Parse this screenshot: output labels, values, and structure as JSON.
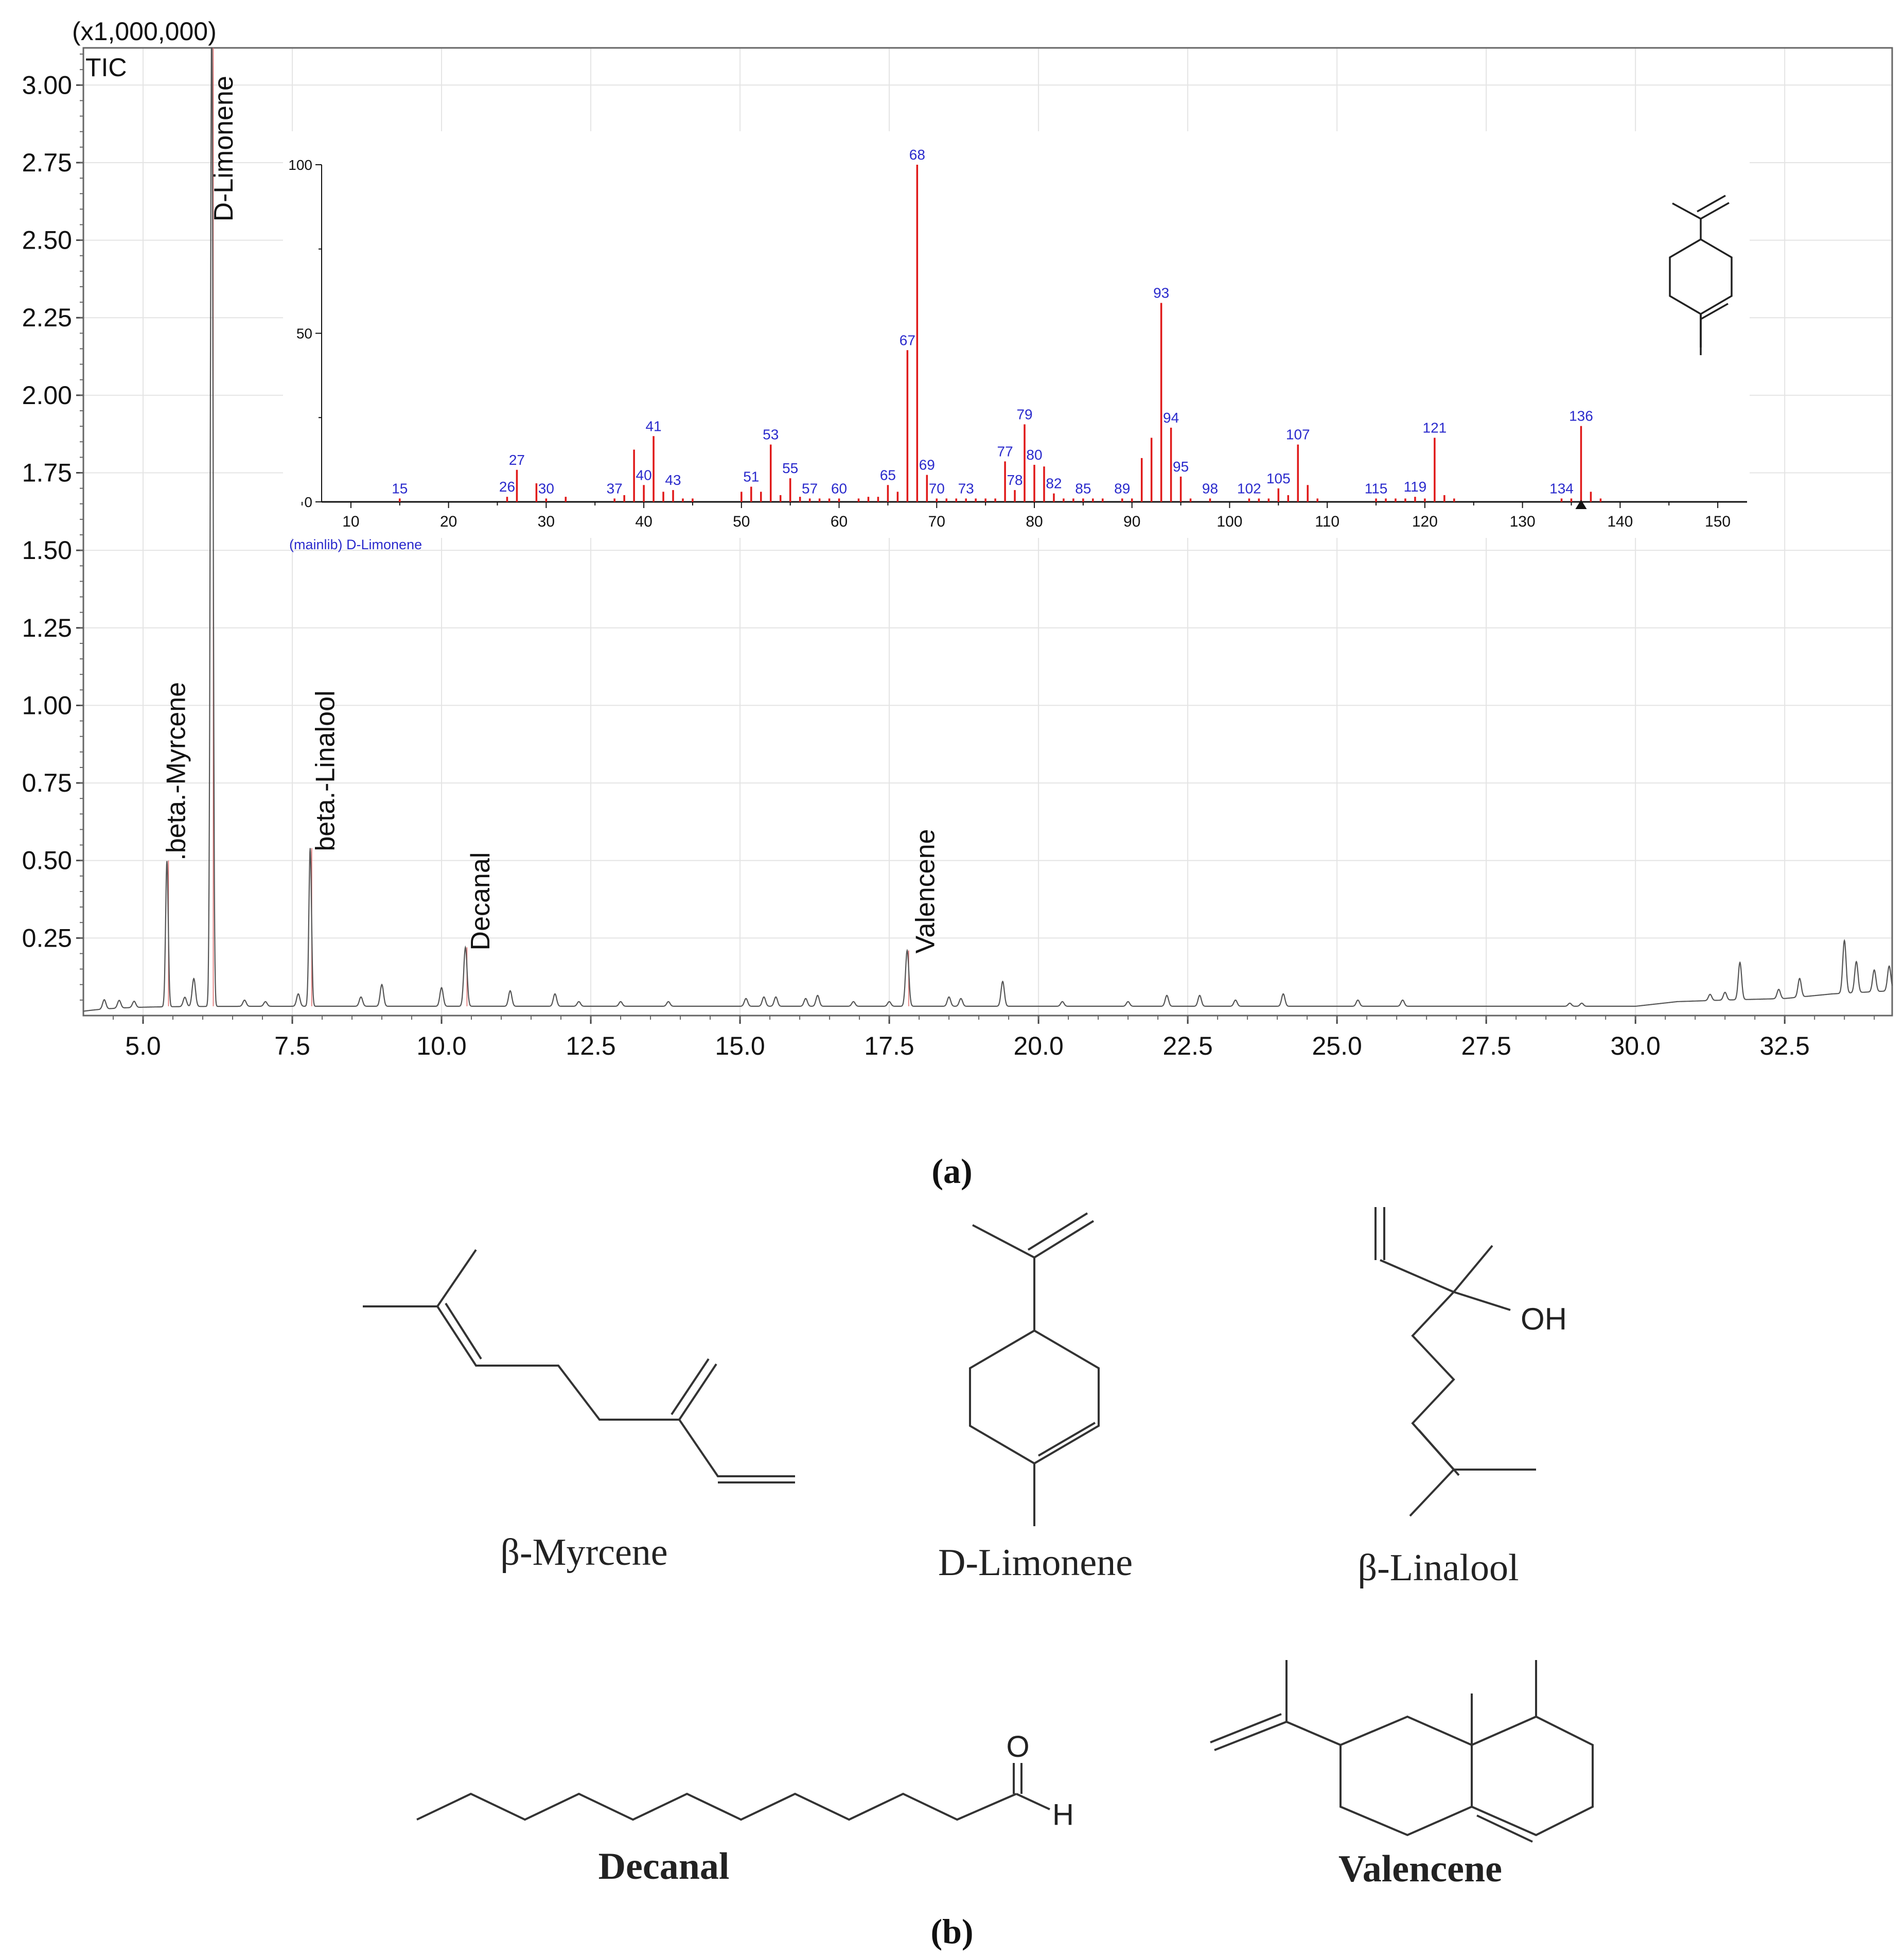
{
  "figure": {
    "panel_a_label": "(a)",
    "panel_b_label": "(b)"
  },
  "chart_data": [
    {
      "type": "line",
      "title": "TIC",
      "y_multiplier_label": "(x1,000,000)",
      "xlabel": "",
      "ylabel": "",
      "xlim": [
        4.0,
        34.3
      ],
      "ylim": [
        0.0,
        3.12
      ],
      "x_ticks": [
        5.0,
        7.5,
        10.0,
        12.5,
        15.0,
        17.5,
        20.0,
        22.5,
        25.0,
        27.5,
        30.0,
        32.5
      ],
      "x_tick_labels": [
        "5.0",
        "7.5",
        "10.0",
        "12.5",
        "15.0",
        "17.5",
        "20.0",
        "22.5",
        "25.0",
        "27.5",
        "30.0",
        "32.5"
      ],
      "y_ticks": [
        0.25,
        0.5,
        0.75,
        1.0,
        1.25,
        1.5,
        1.75,
        2.0,
        2.25,
        2.5,
        2.75,
        3.0
      ],
      "y_tick_labels": [
        "0.25",
        "0.50",
        "0.75",
        "1.00",
        "1.25",
        "1.50",
        "1.75",
        "2.00",
        "2.25",
        "2.50",
        "2.75",
        "3.00"
      ],
      "grid": true,
      "baseline": 0.03,
      "peaks": [
        {
          "rt": 4.35,
          "height": 0.03
        },
        {
          "rt": 4.6,
          "height": 0.025
        },
        {
          "rt": 4.85,
          "height": 0.02
        },
        {
          "rt": 5.4,
          "height": 0.47
        },
        {
          "rt": 5.7,
          "height": 0.03
        },
        {
          "rt": 5.85,
          "height": 0.09
        },
        {
          "rt": 6.15,
          "height": 3.2
        },
        {
          "rt": 6.7,
          "height": 0.02
        },
        {
          "rt": 7.05,
          "height": 0.015
        },
        {
          "rt": 7.6,
          "height": 0.04
        },
        {
          "rt": 7.8,
          "height": 0.51
        },
        {
          "rt": 8.65,
          "height": 0.03
        },
        {
          "rt": 9.0,
          "height": 0.07
        },
        {
          "rt": 10.0,
          "height": 0.06
        },
        {
          "rt": 10.4,
          "height": 0.19
        },
        {
          "rt": 11.15,
          "height": 0.05
        },
        {
          "rt": 11.9,
          "height": 0.04
        },
        {
          "rt": 12.3,
          "height": 0.015
        },
        {
          "rt": 13.0,
          "height": 0.015
        },
        {
          "rt": 13.8,
          "height": 0.015
        },
        {
          "rt": 15.1,
          "height": 0.025
        },
        {
          "rt": 15.4,
          "height": 0.03
        },
        {
          "rt": 15.6,
          "height": 0.03
        },
        {
          "rt": 16.1,
          "height": 0.025
        },
        {
          "rt": 16.3,
          "height": 0.035
        },
        {
          "rt": 16.9,
          "height": 0.015
        },
        {
          "rt": 17.5,
          "height": 0.015
        },
        {
          "rt": 17.8,
          "height": 0.18
        },
        {
          "rt": 18.5,
          "height": 0.03
        },
        {
          "rt": 18.7,
          "height": 0.025
        },
        {
          "rt": 19.4,
          "height": 0.08
        },
        {
          "rt": 20.4,
          "height": 0.015
        },
        {
          "rt": 21.5,
          "height": 0.015
        },
        {
          "rt": 22.15,
          "height": 0.035
        },
        {
          "rt": 22.7,
          "height": 0.035
        },
        {
          "rt": 23.3,
          "height": 0.02
        },
        {
          "rt": 24.1,
          "height": 0.04
        },
        {
          "rt": 25.35,
          "height": 0.02
        },
        {
          "rt": 26.1,
          "height": 0.02
        },
        {
          "rt": 28.9,
          "height": 0.01
        },
        {
          "rt": 29.1,
          "height": 0.01
        },
        {
          "rt": 31.25,
          "height": 0.02
        },
        {
          "rt": 31.5,
          "height": 0.025
        },
        {
          "rt": 31.75,
          "height": 0.12
        },
        {
          "rt": 32.4,
          "height": 0.03
        },
        {
          "rt": 32.75,
          "height": 0.06
        },
        {
          "rt": 33.5,
          "height": 0.17
        },
        {
          "rt": 33.7,
          "height": 0.1
        },
        {
          "rt": 34.0,
          "height": 0.07
        },
        {
          "rt": 34.25,
          "height": 0.08
        }
      ],
      "drift": [
        {
          "rt": 30.0,
          "offset": 0.0
        },
        {
          "rt": 30.7,
          "offset": 0.015
        },
        {
          "rt": 31.5,
          "offset": 0.02
        },
        {
          "rt": 32.5,
          "offset": 0.025
        },
        {
          "rt": 33.3,
          "offset": 0.04
        },
        {
          "rt": 34.3,
          "offset": 0.05
        }
      ],
      "annotations": [
        {
          "text": ".beta.-Myrcene",
          "x": 5.4,
          "y": 0.5
        },
        {
          "text": "D-Limonene",
          "x": 6.2,
          "y": 2.56
        },
        {
          "text": "beta.-Linalool",
          "x": 7.9,
          "y": 0.53
        },
        {
          "text": "Decanal",
          "x": 10.5,
          "y": 0.21
        },
        {
          "text": "Valencene",
          "x": 17.95,
          "y": 0.2
        }
      ]
    },
    {
      "type": "bar",
      "title": "(mainlib) D-Limonene",
      "xlabel": "",
      "ylabel": "",
      "xlim": [
        7,
        153
      ],
      "ylim": [
        0,
        100
      ],
      "x_ticks": [
        10,
        20,
        30,
        40,
        50,
        60,
        70,
        80,
        90,
        100,
        110,
        120,
        130,
        140,
        150
      ],
      "x_tick_labels": [
        "10",
        "20",
        "30",
        "40",
        "50",
        "60",
        "70",
        "80",
        "90",
        "100",
        "110",
        "120",
        "130",
        "140",
        "150"
      ],
      "y_ticks": [
        0,
        50,
        100
      ],
      "y_tick_labels": [
        "0",
        "50",
        "100"
      ],
      "marker_at": 136,
      "peaks": [
        {
          "mz": 15,
          "i": 1,
          "label": "15"
        },
        {
          "mz": 26,
          "i": 1.5,
          "label": "26"
        },
        {
          "mz": 27,
          "i": 9.5,
          "label": "27"
        },
        {
          "mz": 29,
          "i": 5.5
        },
        {
          "mz": 30,
          "i": 1,
          "label": "30"
        },
        {
          "mz": 32,
          "i": 1.5
        },
        {
          "mz": 37,
          "i": 1,
          "label": "37"
        },
        {
          "mz": 38,
          "i": 2
        },
        {
          "mz": 39,
          "i": 15.5
        },
        {
          "mz": 40,
          "i": 5,
          "label": "40"
        },
        {
          "mz": 41,
          "i": 19.5,
          "label": "41"
        },
        {
          "mz": 42,
          "i": 3
        },
        {
          "mz": 43,
          "i": 3.5,
          "label": "43"
        },
        {
          "mz": 44,
          "i": 1
        },
        {
          "mz": 45,
          "i": 1
        },
        {
          "mz": 50,
          "i": 3
        },
        {
          "mz": 51,
          "i": 4.5,
          "label": "51"
        },
        {
          "mz": 52,
          "i": 3
        },
        {
          "mz": 53,
          "i": 17,
          "label": "53"
        },
        {
          "mz": 54,
          "i": 2
        },
        {
          "mz": 55,
          "i": 7,
          "label": "55"
        },
        {
          "mz": 56,
          "i": 1.5
        },
        {
          "mz": 57,
          "i": 1,
          "label": "57"
        },
        {
          "mz": 58,
          "i": 1
        },
        {
          "mz": 59,
          "i": 1
        },
        {
          "mz": 60,
          "i": 1,
          "label": "60"
        },
        {
          "mz": 62,
          "i": 1
        },
        {
          "mz": 63,
          "i": 1.5
        },
        {
          "mz": 64,
          "i": 1.5
        },
        {
          "mz": 65,
          "i": 5,
          "label": "65"
        },
        {
          "mz": 66,
          "i": 3
        },
        {
          "mz": 67,
          "i": 45,
          "label": "67"
        },
        {
          "mz": 68,
          "i": 100,
          "label": "68"
        },
        {
          "mz": 69,
          "i": 8,
          "label": "69"
        },
        {
          "mz": 70,
          "i": 1,
          "label": "70"
        },
        {
          "mz": 71,
          "i": 1
        },
        {
          "mz": 72,
          "i": 1
        },
        {
          "mz": 73,
          "i": 1,
          "label": "73"
        },
        {
          "mz": 74,
          "i": 1
        },
        {
          "mz": 75,
          "i": 1
        },
        {
          "mz": 76,
          "i": 1
        },
        {
          "mz": 77,
          "i": 12,
          "label": "77"
        },
        {
          "mz": 78,
          "i": 3.5,
          "label": "78"
        },
        {
          "mz": 79,
          "i": 23,
          "label": "79"
        },
        {
          "mz": 80,
          "i": 11,
          "label": "80"
        },
        {
          "mz": 81,
          "i": 10.5
        },
        {
          "mz": 82,
          "i": 2.5,
          "label": "82"
        },
        {
          "mz": 83,
          "i": 1
        },
        {
          "mz": 84,
          "i": 1
        },
        {
          "mz": 85,
          "i": 1,
          "label": "85"
        },
        {
          "mz": 86,
          "i": 1
        },
        {
          "mz": 87,
          "i": 1
        },
        {
          "mz": 89,
          "i": 1,
          "label": "89"
        },
        {
          "mz": 90,
          "i": 1
        },
        {
          "mz": 91,
          "i": 13
        },
        {
          "mz": 92,
          "i": 19
        },
        {
          "mz": 93,
          "i": 59,
          "label": "93"
        },
        {
          "mz": 94,
          "i": 22,
          "label": "94"
        },
        {
          "mz": 95,
          "i": 7.5,
          "label": "95"
        },
        {
          "mz": 96,
          "i": 1
        },
        {
          "mz": 98,
          "i": 1,
          "label": "98"
        },
        {
          "mz": 102,
          "i": 1,
          "label": "102"
        },
        {
          "mz": 103,
          "i": 1
        },
        {
          "mz": 104,
          "i": 1
        },
        {
          "mz": 105,
          "i": 4,
          "label": "105"
        },
        {
          "mz": 106,
          "i": 2
        },
        {
          "mz": 107,
          "i": 17,
          "label": "107"
        },
        {
          "mz": 108,
          "i": 5
        },
        {
          "mz": 109,
          "i": 1
        },
        {
          "mz": 115,
          "i": 1,
          "label": "115"
        },
        {
          "mz": 116,
          "i": 1
        },
        {
          "mz": 117,
          "i": 1
        },
        {
          "mz": 118,
          "i": 1
        },
        {
          "mz": 119,
          "i": 1.5,
          "label": "119"
        },
        {
          "mz": 120,
          "i": 1
        },
        {
          "mz": 121,
          "i": 19,
          "label": "121"
        },
        {
          "mz": 122,
          "i": 2
        },
        {
          "mz": 123,
          "i": 1
        },
        {
          "mz": 134,
          "i": 1,
          "label": "134"
        },
        {
          "mz": 135,
          "i": 1
        },
        {
          "mz": 136,
          "i": 22.5,
          "label": "136"
        },
        {
          "mz": 137,
          "i": 3
        },
        {
          "mz": 138,
          "i": 1
        }
      ]
    }
  ],
  "structures": [
    {
      "key": "myrcene",
      "name": "β-Myrcene"
    },
    {
      "key": "limonene",
      "name": "D-Limonene"
    },
    {
      "key": "linalool",
      "name": "β-Linalool",
      "oh_label": "OH"
    },
    {
      "key": "decanal",
      "name": "Decanal",
      "o_label": "O",
      "h_label": "H"
    },
    {
      "key": "valencene",
      "name": "Valencene"
    }
  ]
}
